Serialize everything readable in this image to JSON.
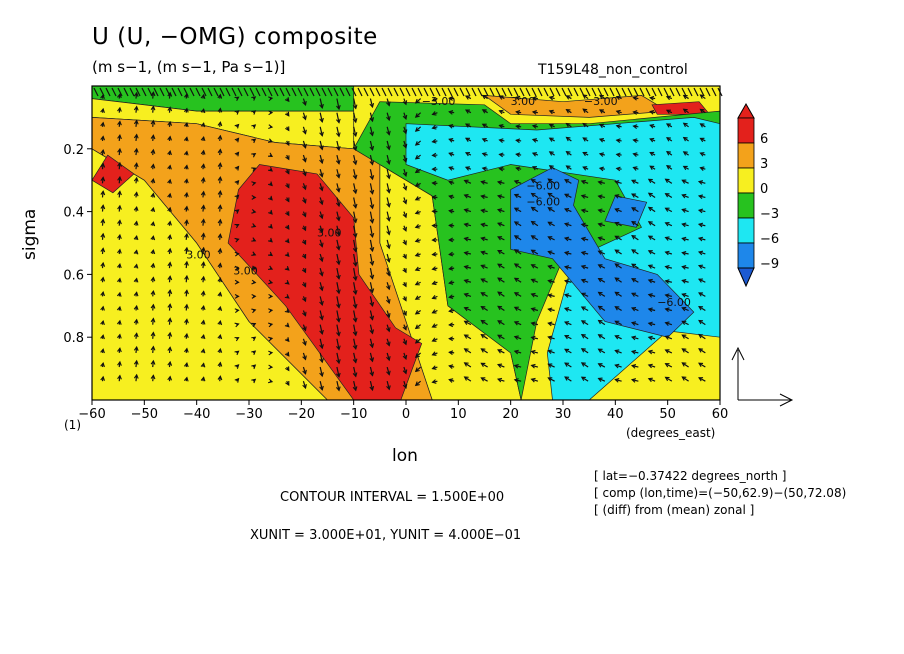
{
  "chart_data": {
    "type": "heatmap",
    "title": "U (U, −OMG) composite",
    "subtitle": "(m s−1, (m s−1, Pa s−1)]",
    "run_label": "T159L48_non_control",
    "xlabel": "lon",
    "ylabel": "sigma",
    "x_unit_label": "(degrees_east)",
    "xlim": [
      -60,
      60
    ],
    "ylim": [
      0,
      1
    ],
    "x_ticks": [
      "−60",
      "−50",
      "−40",
      "−30",
      "−20",
      "−10",
      "0",
      "10",
      "20",
      "30",
      "40",
      "50",
      "60"
    ],
    "x_tick_values": [
      -60,
      -50,
      -40,
      -30,
      -20,
      -10,
      0,
      10,
      20,
      30,
      40,
      50,
      60
    ],
    "y_ticks": [
      "0.2",
      "0.4",
      "0.6",
      "0.8"
    ],
    "y_tick_values": [
      0.2,
      0.4,
      0.6,
      0.8
    ],
    "sub_index": "(1)",
    "colorbar": {
      "labels": [
        "6",
        "3",
        "0",
        "−3",
        "−6",
        "−9"
      ],
      "values": [
        6,
        3,
        0,
        -3,
        -6,
        -9
      ],
      "colors": [
        "#e3211c",
        "#f3a21b",
        "#f7ef20",
        "#27c21f",
        "#1ee7f2",
        "#1e87ea",
        "#1c5ad2"
      ]
    },
    "contour_labels": [
      "3.00",
      "3.00",
      "−6.00",
      "−6.00",
      "−6.00",
      "3.00",
      "−3.00",
      "3.00",
      "−3.00"
    ],
    "contour_interval": "CONTOUR INTERVAL = 1.500E+00",
    "vector_units": "XUNIT = 3.000E+01, YUNIT = 4.000E−01",
    "notes": [
      "[ lat=−0.37422 degrees_north ]",
      "[ comp (lon,time)=(−50,62.9)−(50,72.08)",
      "[ (diff) from (mean) zonal ]"
    ],
    "regions": [
      {
        "level": -3,
        "polygon": [
          [
            -60,
            0.0
          ],
          [
            -10,
            0.0
          ],
          [
            -10,
            0.08
          ],
          [
            -40,
            0.08
          ],
          [
            -60,
            0.04
          ]
        ]
      },
      {
        "level": 0,
        "polygon": [
          [
            -60,
            0.04
          ],
          [
            -40,
            0.08
          ],
          [
            -10,
            0.08
          ],
          [
            -10,
            0.2
          ],
          [
            -25,
            0.18
          ],
          [
            -40,
            0.12
          ],
          [
            -60,
            0.1
          ]
        ]
      },
      {
        "level": 0,
        "polygon": [
          [
            -60,
            0.2
          ],
          [
            -50,
            0.3
          ],
          [
            -40,
            0.5
          ],
          [
            -30,
            0.75
          ],
          [
            -15,
            1.0
          ],
          [
            -60,
            1.0
          ]
        ]
      },
      {
        "level": 0,
        "polygon": [
          [
            -5,
            0.25
          ],
          [
            5,
            0.35
          ],
          [
            8,
            0.7
          ],
          [
            20,
            0.85
          ],
          [
            22,
            1.0
          ],
          [
            5,
            1.0
          ],
          [
            -5,
            0.5
          ]
        ]
      },
      {
        "level": 3,
        "polygon": [
          [
            -60,
            0.1
          ],
          [
            -40,
            0.12
          ],
          [
            -25,
            0.18
          ],
          [
            -10,
            0.2
          ],
          [
            -5,
            0.25
          ],
          [
            -5,
            0.5
          ],
          [
            5,
            1.0
          ],
          [
            -15,
            1.0
          ],
          [
            -30,
            0.75
          ],
          [
            -40,
            0.5
          ],
          [
            -50,
            0.3
          ],
          [
            -60,
            0.2
          ]
        ]
      },
      {
        "level": 3,
        "polygon": [
          [
            15,
            0.03
          ],
          [
            30,
            0.05
          ],
          [
            45,
            0.03
          ],
          [
            50,
            0.08
          ],
          [
            35,
            0.1
          ],
          [
            20,
            0.09
          ]
        ]
      },
      {
        "level": 6,
        "polygon": [
          [
            -32,
            0.33
          ],
          [
            -28,
            0.25
          ],
          [
            -17,
            0.28
          ],
          [
            -10,
            0.42
          ],
          [
            -9,
            0.6
          ],
          [
            -2,
            0.77
          ],
          [
            3,
            0.82
          ],
          [
            -1,
            1.0
          ],
          [
            -10,
            1.0
          ],
          [
            -23,
            0.7
          ],
          [
            -34,
            0.5
          ]
        ]
      },
      {
        "level": 6,
        "polygon": [
          [
            -60,
            0.3
          ],
          [
            -57,
            0.22
          ],
          [
            -52,
            0.28
          ],
          [
            -56,
            0.34
          ]
        ]
      },
      {
        "level": 6,
        "polygon": [
          [
            47,
            0.06
          ],
          [
            56,
            0.05
          ],
          [
            58,
            0.09
          ],
          [
            48,
            0.09
          ]
        ]
      },
      {
        "level": -3,
        "polygon": [
          [
            -5,
            0.05
          ],
          [
            15,
            0.06
          ],
          [
            20,
            0.12
          ],
          [
            35,
            0.12
          ],
          [
            60,
            0.08
          ],
          [
            60,
            0.5
          ],
          [
            45,
            0.6
          ],
          [
            30,
            0.55
          ],
          [
            25,
            0.75
          ],
          [
            22,
            1.0
          ],
          [
            20,
            0.85
          ],
          [
            8,
            0.7
          ],
          [
            5,
            0.35
          ],
          [
            -5,
            0.25
          ],
          [
            -10,
            0.2
          ]
        ]
      },
      {
        "level": -6,
        "polygon": [
          [
            0,
            0.12
          ],
          [
            25,
            0.14
          ],
          [
            55,
            0.1
          ],
          [
            60,
            0.12
          ],
          [
            60,
            0.8
          ],
          [
            50,
            0.78
          ],
          [
            35,
            1.0
          ],
          [
            28,
            1.0
          ],
          [
            27,
            0.85
          ],
          [
            32,
            0.55
          ],
          [
            45,
            0.45
          ],
          [
            40,
            0.3
          ],
          [
            20,
            0.25
          ],
          [
            8,
            0.3
          ],
          [
            0,
            0.25
          ]
        ]
      },
      {
        "level": -9,
        "polygon": [
          [
            20,
            0.33
          ],
          [
            28,
            0.26
          ],
          [
            33,
            0.3
          ],
          [
            32,
            0.38
          ],
          [
            38,
            0.55
          ],
          [
            48,
            0.6
          ],
          [
            55,
            0.72
          ],
          [
            50,
            0.8
          ],
          [
            38,
            0.75
          ],
          [
            28,
            0.55
          ],
          [
            20,
            0.52
          ]
        ]
      },
      {
        "level": -9,
        "polygon": [
          [
            40,
            0.35
          ],
          [
            46,
            0.37
          ],
          [
            44,
            0.45
          ],
          [
            38,
            0.43
          ]
        ]
      }
    ],
    "vector_field_note": "wind vectors (U, −OMG) drawn over the field; strong descending flow near lon −10, ascending west and east"
  }
}
